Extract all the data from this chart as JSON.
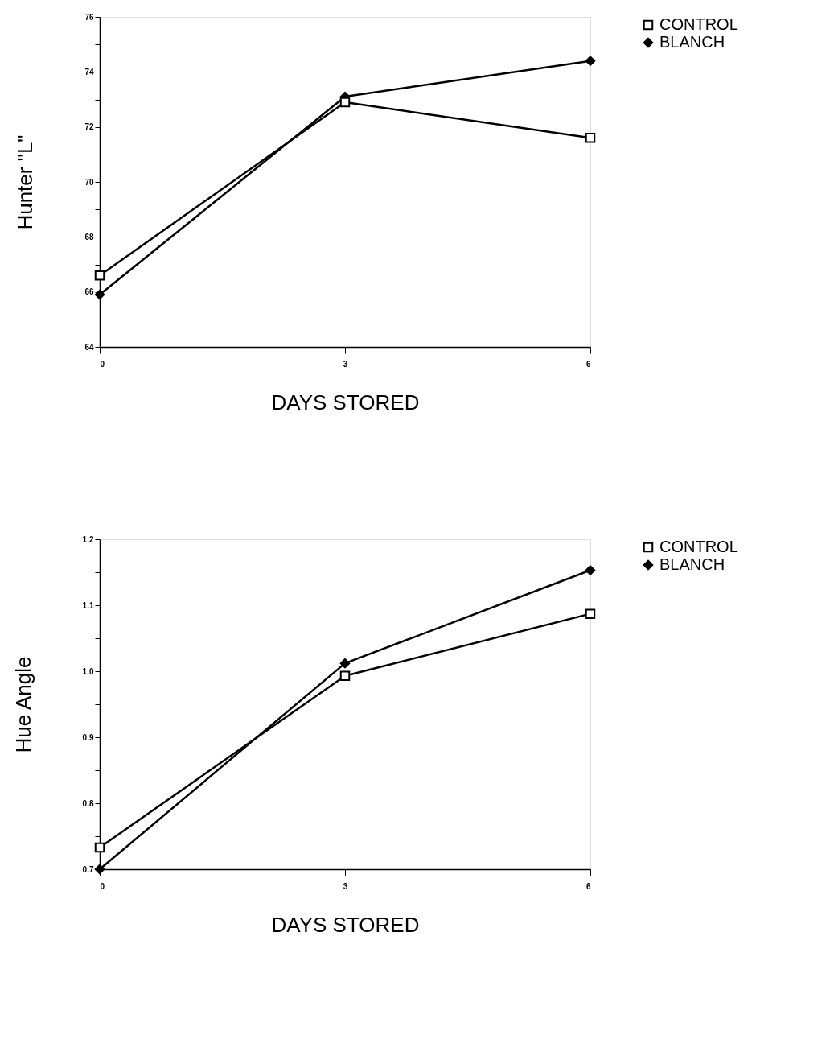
{
  "chart_data": [
    {
      "type": "line",
      "xlabel": "DAYS STORED",
      "ylabel": "Hunter \"L\"",
      "x": [
        0,
        3,
        6
      ],
      "xlim": [
        0,
        6
      ],
      "xticks": [
        0,
        3,
        6
      ],
      "ylim": [
        64,
        76
      ],
      "yticks": [
        64,
        {
          "value": 65,
          "label": null
        },
        66,
        {
          "value": 67,
          "label": null
        },
        68,
        {
          "value": 69,
          "label": null
        },
        70,
        {
          "value": 71,
          "label": null
        },
        72,
        {
          "value": 73,
          "label": null
        },
        74,
        {
          "value": 75,
          "label": null
        },
        76
      ],
      "series": [
        {
          "name": "CONTROL",
          "color": "#000000",
          "marker": "square",
          "values": [
            66.6,
            72.9,
            71.6
          ]
        },
        {
          "name": "BLANCH",
          "color": "#000000",
          "marker": "diamond",
          "values": [
            65.9,
            73.1,
            74.4
          ]
        }
      ],
      "legend": "top right",
      "grid": false
    },
    {
      "type": "line",
      "xlabel": "DAYS STORED",
      "ylabel": "Hue Angle",
      "x": [
        0,
        3,
        6
      ],
      "xlim": [
        0,
        6
      ],
      "xticks": [
        0,
        3,
        6
      ],
      "ylim": [
        0.7,
        1.2
      ],
      "yticks": [
        0.7,
        {
          "value": 0.75,
          "label": null
        },
        0.8,
        {
          "value": 0.85,
          "label": null
        },
        0.9,
        {
          "value": 0.95,
          "label": null
        },
        {
          "value": 1.0,
          "label": "1.0"
        },
        {
          "value": 1.05,
          "label": null
        },
        1.1,
        {
          "value": 1.15,
          "label": null
        },
        1.2
      ],
      "series": [
        {
          "name": "CONTROL",
          "color": "#000000",
          "marker": "square",
          "values": [
            0.733,
            0.993,
            1.087
          ]
        },
        {
          "name": "BLANCH",
          "color": "#000000",
          "marker": "diamond",
          "values": [
            0.7,
            1.012,
            1.153
          ]
        }
      ],
      "legend": "top right",
      "grid": false
    }
  ]
}
